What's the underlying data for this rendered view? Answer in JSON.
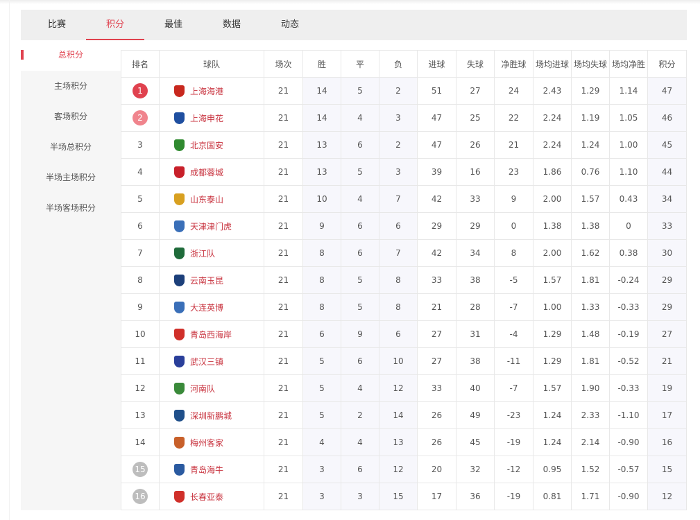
{
  "tabs": [
    {
      "label": "比赛"
    },
    {
      "label": "积分",
      "active": true
    },
    {
      "label": "最佳"
    },
    {
      "label": "数据"
    },
    {
      "label": "动态"
    }
  ],
  "sidebar": [
    {
      "label": "总积分",
      "active": true
    },
    {
      "label": "主场积分"
    },
    {
      "label": "客场积分"
    },
    {
      "label": "半场总积分"
    },
    {
      "label": "半场主场积分"
    },
    {
      "label": "半场客场积分"
    }
  ],
  "colors": {
    "accent": "#e0424f",
    "rank1": "#e0424f",
    "rank2": "#f0848d",
    "relegation": "#bdbdbd"
  },
  "table": {
    "headers": [
      "排名",
      "球队",
      "场次",
      "胜",
      "平",
      "负",
      "进球",
      "失球",
      "净胜球",
      "场均进球",
      "场均失球",
      "场均净胜",
      "积分"
    ],
    "rows": [
      [
        "1",
        "上海海港",
        "21",
        "14",
        "5",
        "2",
        "51",
        "27",
        "24",
        "2.43",
        "1.29",
        "1.14",
        "47"
      ],
      [
        "2",
        "上海申花",
        "21",
        "14",
        "4",
        "3",
        "47",
        "25",
        "22",
        "2.24",
        "1.19",
        "1.05",
        "46"
      ],
      [
        "3",
        "北京国安",
        "21",
        "13",
        "6",
        "2",
        "47",
        "26",
        "21",
        "2.24",
        "1.24",
        "1.00",
        "45"
      ],
      [
        "4",
        "成都蓉城",
        "21",
        "13",
        "5",
        "3",
        "39",
        "16",
        "23",
        "1.86",
        "0.76",
        "1.10",
        "44"
      ],
      [
        "5",
        "山东泰山",
        "21",
        "10",
        "4",
        "7",
        "42",
        "33",
        "9",
        "2.00",
        "1.57",
        "0.43",
        "34"
      ],
      [
        "6",
        "天津津门虎",
        "21",
        "9",
        "6",
        "6",
        "29",
        "29",
        "0",
        "1.38",
        "1.38",
        "0",
        "33"
      ],
      [
        "7",
        "浙江队",
        "21",
        "8",
        "6",
        "7",
        "42",
        "34",
        "8",
        "2.00",
        "1.62",
        "0.38",
        "30"
      ],
      [
        "8",
        "云南玉昆",
        "21",
        "8",
        "5",
        "8",
        "33",
        "38",
        "-5",
        "1.57",
        "1.81",
        "-0.24",
        "29"
      ],
      [
        "9",
        "大连英博",
        "21",
        "8",
        "5",
        "8",
        "21",
        "28",
        "-7",
        "1.00",
        "1.33",
        "-0.33",
        "29"
      ],
      [
        "10",
        "青岛西海岸",
        "21",
        "6",
        "9",
        "6",
        "27",
        "31",
        "-4",
        "1.29",
        "1.48",
        "-0.19",
        "27"
      ],
      [
        "11",
        "武汉三镇",
        "21",
        "5",
        "6",
        "10",
        "27",
        "38",
        "-11",
        "1.29",
        "1.81",
        "-0.52",
        "21"
      ],
      [
        "12",
        "河南队",
        "21",
        "5",
        "4",
        "12",
        "33",
        "40",
        "-7",
        "1.57",
        "1.90",
        "-0.33",
        "19"
      ],
      [
        "13",
        "深圳新鹏城",
        "21",
        "5",
        "2",
        "14",
        "26",
        "49",
        "-23",
        "1.24",
        "2.33",
        "-1.10",
        "17"
      ],
      [
        "14",
        "梅州客家",
        "21",
        "4",
        "4",
        "13",
        "26",
        "45",
        "-19",
        "1.24",
        "2.14",
        "-0.90",
        "16"
      ],
      [
        "15",
        "青岛海牛",
        "21",
        "3",
        "6",
        "12",
        "20",
        "32",
        "-12",
        "0.95",
        "1.52",
        "-0.57",
        "15"
      ],
      [
        "16",
        "长春亚泰",
        "21",
        "3",
        "3",
        "15",
        "17",
        "36",
        "-19",
        "0.81",
        "1.71",
        "-0.90",
        "12"
      ]
    ],
    "logo_colors": [
      "#c8281e",
      "#1f4fa0",
      "#2f8a2f",
      "#c8202a",
      "#d8a020",
      "#3a6fb8",
      "#1f6b3a",
      "#1c3f7a",
      "#3a6fb8",
      "#d0302a",
      "#2a3f9a",
      "#3a8a3a",
      "#1f4f8a",
      "#c8602a",
      "#2a5aa0",
      "#d0302a"
    ]
  }
}
